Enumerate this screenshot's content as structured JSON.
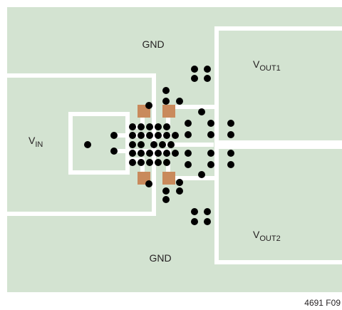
{
  "labels": {
    "gnd_top": "GND",
    "vout1": {
      "main": "V",
      "sub": "OUT1"
    },
    "vin": {
      "main": "V",
      "sub": "IN"
    },
    "vout2": {
      "main": "V",
      "sub": "OUT2"
    },
    "gnd_bottom": "GND"
  },
  "figure_id": "4691 F09"
}
